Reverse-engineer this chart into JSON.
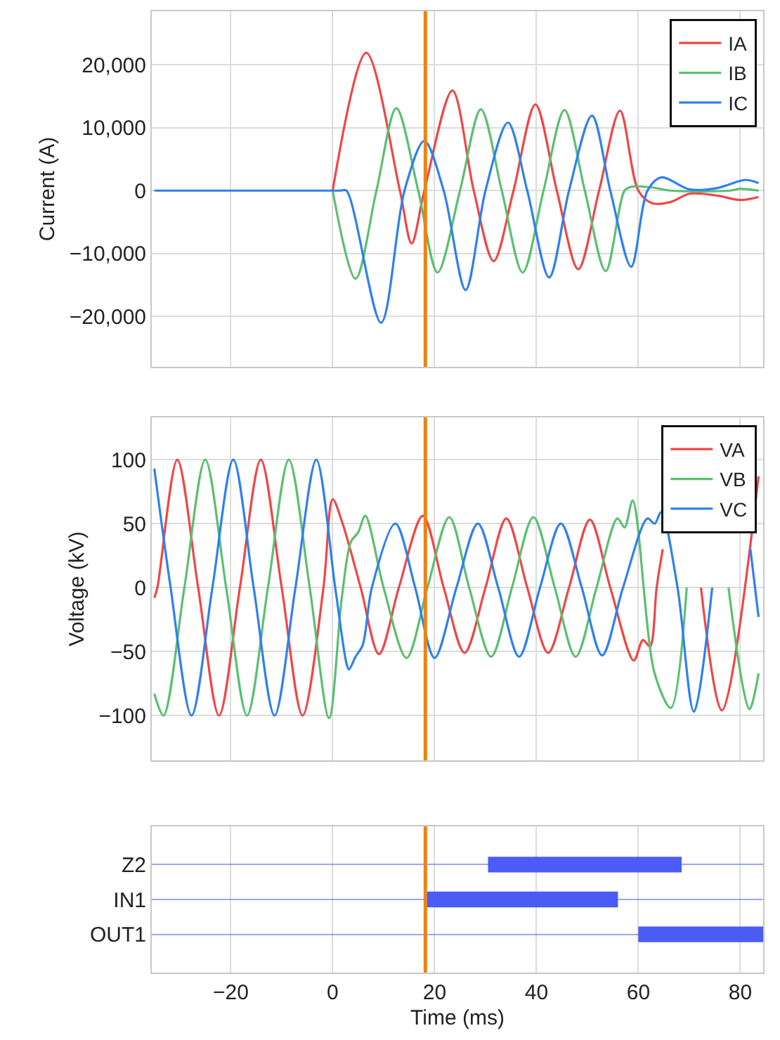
{
  "chart_data": [
    {
      "type": "line",
      "ylabel": "Current (A)",
      "xlim": [
        -35.5,
        84.5
      ],
      "xticks": [
        {
          "value": -20,
          "label": null
        },
        {
          "value": 0,
          "label": null
        },
        {
          "value": 20,
          "label": null
        },
        {
          "value": 40,
          "label": null
        },
        {
          "value": 60,
          "label": null
        },
        {
          "value": 80,
          "label": null
        }
      ],
      "ylim": [
        -28000,
        28500
      ],
      "yticks": [
        {
          "value": -20000,
          "label": "−20,000"
        },
        {
          "value": -10000,
          "label": "−10,000"
        },
        0,
        {
          "value": 10000,
          "label": "10,000"
        },
        {
          "value": 20000,
          "label": "20,000"
        }
      ],
      "tick_labels": "y",
      "grid": true,
      "legend": "top right",
      "ref_lines": [
        {
          "axis": "x",
          "value": 18.2,
          "color": "#f0820f"
        }
      ],
      "series": [
        {
          "name": "IA",
          "color": "#f04646",
          "x": [
            0,
            6.6,
            13.2,
            15.5,
            18,
            23.5,
            27.7,
            31.6,
            35.5,
            39.8,
            44,
            48.2,
            52.3,
            56.4,
            60,
            62.7,
            66.4,
            70,
            75.5,
            80,
            83.6
          ],
          "values": [
            0,
            21900,
            0,
            -8400,
            0,
            15900,
            0,
            -11200,
            0,
            13700,
            0,
            -12500,
            0,
            12700,
            0,
            -2000,
            -1800,
            -500,
            -800,
            -1500,
            -1000
          ]
        },
        {
          "name": "IB",
          "color": "#5cbf72",
          "x": [
            0,
            4.5,
            8.6,
            12.5,
            16.8,
            20.6,
            25,
            29.1,
            33.2,
            37.3,
            41.4,
            45.5,
            49.5,
            53.6,
            57.3,
            58.6,
            62.7,
            66.4,
            78,
            80,
            83.6
          ],
          "values": [
            0,
            -14000,
            0,
            13100,
            0,
            -13000,
            0,
            12900,
            0,
            -13000,
            0,
            12800,
            0,
            -12800,
            0,
            600,
            500,
            0,
            0,
            300,
            0
          ]
        },
        {
          "name": "IC",
          "color": "#2f80f0",
          "x": [
            -35,
            -20,
            -5,
            1.5,
            2.7,
            9.5,
            14.1,
            18,
            21.8,
            26.1,
            30,
            34.4,
            38.2,
            42.5,
            46.4,
            50.9,
            54.5,
            58.6,
            61.8,
            64.5,
            70,
            75.5,
            81,
            83.6
          ],
          "values": [
            0,
            0,
            0,
            0,
            0,
            -21000,
            0,
            7900,
            0,
            -15800,
            0,
            10800,
            0,
            -13800,
            0,
            11900,
            0,
            -12100,
            0,
            2100,
            200,
            400,
            1700,
            1200
          ]
        }
      ]
    },
    {
      "type": "line",
      "ylabel": "Voltage (kV)",
      "xlim": [
        -35.5,
        84.5
      ],
      "xticks": [
        {
          "value": -20,
          "label": null
        },
        {
          "value": 0,
          "label": null
        },
        {
          "value": 20,
          "label": null
        },
        {
          "value": 40,
          "label": null
        },
        {
          "value": 60,
          "label": null
        },
        {
          "value": 80,
          "label": null
        }
      ],
      "ylim": [
        -135,
        133
      ],
      "yticks": [
        {
          "value": -100,
          "label": "−100"
        },
        {
          "value": -50,
          "label": "−50"
        },
        0,
        50,
        100
      ],
      "tick_labels": "y",
      "grid": true,
      "legend": "top right",
      "ref_lines": [
        {
          "axis": "x",
          "value": 18.2,
          "color": "#f0820f"
        }
      ],
      "series": [
        {
          "name": "VA",
          "color": "#f04646",
          "x": [
            -35,
            -34.4,
            -30.5,
            -26.4,
            -22.3,
            -18.2,
            -14.1,
            -10,
            -5.9,
            -1.8,
            0,
            1.8,
            5.5,
            9.1,
            13,
            17.7,
            21.8,
            25.9,
            30,
            34.1,
            38.2,
            42.3,
            46.4,
            50.5,
            54.5,
            59.1,
            60.9,
            62.3,
            63.6,
            64.8,
            69,
            72.3,
            76.4,
            83.6
          ],
          "values": [
            -8,
            0,
            100,
            0,
            -100,
            0,
            100,
            0,
            -100,
            0,
            69,
            52,
            0,
            -52,
            0,
            56,
            0,
            -51,
            0,
            54,
            0,
            -51,
            0,
            53,
            0,
            -57,
            -41,
            -46,
            0,
            30,
            null,
            0,
            -96,
            87
          ]
        },
        {
          "name": "VB",
          "color": "#5cbf72",
          "x": [
            -35,
            -33.2,
            -29.1,
            -25,
            -20.9,
            -16.8,
            -12.7,
            -8.6,
            -4.5,
            -0.7,
            1.8,
            3.6,
            5,
            6.4,
            10,
            14.5,
            18.6,
            22.9,
            26.8,
            31.1,
            35.2,
            39.4,
            43.6,
            47.7,
            51.8,
            55.9,
            57.3,
            58.9,
            63.2,
            66.4,
            69.5,
            73.6,
            77.7,
            81.8,
            83.6
          ],
          "values": [
            -83,
            -100,
            0,
            100,
            0,
            -100,
            0,
            100,
            0,
            -102,
            -8,
            36,
            43,
            56,
            0,
            -55,
            0,
            55,
            0,
            -54,
            0,
            55,
            0,
            -54,
            0,
            54,
            47,
            68,
            -67,
            -94,
            0,
            null,
            0,
            -95,
            -67
          ]
        },
        {
          "name": "VC",
          "color": "#2f80f0",
          "x": [
            -35,
            -31.8,
            -27.7,
            -23.6,
            -19.5,
            -15.5,
            -11.4,
            -7.3,
            -3.2,
            0.5,
            2.7,
            3.2,
            4.5,
            5.9,
            7.7,
            12.3,
            16.2,
            20,
            24.3,
            28.5,
            32.5,
            36.6,
            40.7,
            44.8,
            48.9,
            52.9,
            57,
            61.8,
            63.2,
            64.5,
            67.7,
            70.9,
            74.5,
            78.2,
            82,
            83.6
          ],
          "values": [
            93,
            0,
            -100,
            0,
            100,
            0,
            -100,
            0,
            100,
            0,
            -59,
            -64,
            -54,
            -45,
            0,
            50,
            0,
            -55,
            0,
            50,
            0,
            -54,
            0,
            50,
            0,
            -53,
            0,
            54,
            50,
            59,
            0,
            -97,
            0,
            null,
            30,
            -23
          ]
        }
      ]
    },
    {
      "type": "bar",
      "orientation": "horizontal",
      "xlabel": "Time (ms)",
      "categories": [
        "Z2",
        "IN1",
        "OUT1"
      ],
      "base": [
        30.5,
        18.5,
        60
      ],
      "values": [
        38,
        37.5,
        24.5
      ],
      "color": "#4a5cf5",
      "xlim": [
        -35.5,
        84.5
      ],
      "xticks": [
        {
          "value": -20,
          "label": "−20"
        },
        0,
        20,
        40,
        60,
        80
      ],
      "grid": true,
      "ref_lines": [
        {
          "axis": "x",
          "value": 18.2,
          "color": "#f0820f"
        }
      ]
    }
  ]
}
